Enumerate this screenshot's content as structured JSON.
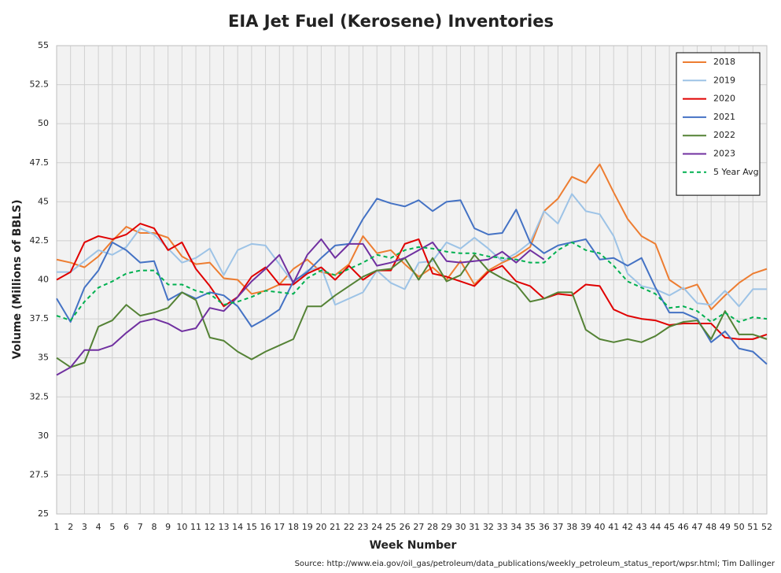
{
  "chart_data": {
    "type": "line",
    "title": "EIA Jet Fuel (Kerosene) Inventories",
    "x_label": "Week Number",
    "y_label": "Volume (Millions of BBLS)",
    "source": "Source: http://www.eia.gov/oil_gas/petroleum/data_publications/weekly_petroleum_status_report/wpsr.html; Tim Dallinger",
    "x": [
      1,
      2,
      3,
      4,
      5,
      6,
      7,
      8,
      9,
      10,
      11,
      12,
      13,
      14,
      15,
      16,
      17,
      18,
      19,
      20,
      21,
      22,
      23,
      24,
      25,
      26,
      27,
      28,
      29,
      30,
      31,
      32,
      33,
      34,
      35,
      36,
      37,
      38,
      39,
      40,
      41,
      42,
      43,
      44,
      45,
      46,
      47,
      48,
      49,
      50,
      51,
      52
    ],
    "xlim": [
      1,
      52
    ],
    "xticks": [
      1,
      2,
      3,
      4,
      5,
      6,
      7,
      8,
      9,
      10,
      11,
      12,
      13,
      14,
      15,
      16,
      17,
      18,
      19,
      20,
      21,
      22,
      23,
      24,
      25,
      26,
      27,
      28,
      29,
      30,
      31,
      32,
      33,
      34,
      35,
      36,
      37,
      38,
      39,
      40,
      41,
      42,
      43,
      44,
      45,
      46,
      47,
      48,
      49,
      50,
      51,
      52
    ],
    "ylim": [
      25,
      55
    ],
    "yticks": [
      25,
      27.5,
      30,
      32.5,
      35,
      37.5,
      40,
      42.5,
      45,
      47.5,
      50,
      52.5,
      55
    ],
    "grid": true,
    "legend_position": "upper right",
    "series": [
      {
        "name": "2018",
        "color": "#ed7d31",
        "style": "solid",
        "values": [
          41.3,
          41.1,
          40.8,
          41.5,
          42.5,
          43.4,
          43.0,
          43.0,
          42.7,
          41.5,
          41.0,
          41.1,
          40.1,
          40.0,
          39.1,
          39.3,
          39.7,
          40.7,
          41.3,
          40.5,
          40.3,
          41.0,
          42.8,
          41.7,
          41.9,
          41.0,
          40.2,
          40.8,
          40.0,
          41.2,
          39.7,
          40.6,
          41.1,
          41.5,
          42.1,
          44.4,
          45.2,
          46.6,
          46.2,
          47.4,
          45.6,
          43.9,
          42.8,
          42.3,
          40.0,
          39.4,
          39.7,
          38.1,
          39.0,
          39.8,
          40.4,
          40.7
        ]
      },
      {
        "name": "2019",
        "color": "#9dc3e6",
        "style": "solid",
        "values": [
          40.5,
          40.5,
          41.2,
          41.9,
          41.6,
          42.1,
          43.3,
          42.9,
          42.0,
          41.1,
          41.4,
          42.0,
          40.3,
          41.9,
          42.3,
          42.2,
          41.0,
          39.8,
          40.6,
          40.8,
          38.4,
          38.8,
          39.2,
          40.6,
          39.8,
          39.4,
          41.1,
          41.2,
          42.4,
          42.0,
          42.7,
          42.0,
          41.2,
          41.7,
          42.4,
          44.4,
          43.6,
          45.5,
          44.4,
          44.2,
          42.8,
          40.4,
          39.6,
          39.4,
          39.0,
          39.5,
          38.5,
          38.4,
          39.3,
          38.3,
          39.4,
          39.4
        ]
      },
      {
        "name": "2020",
        "color": "#e00000",
        "style": "solid",
        "values": [
          40.0,
          40.5,
          42.4,
          42.8,
          42.6,
          42.9,
          43.6,
          43.3,
          41.9,
          42.4,
          40.7,
          39.6,
          38.3,
          38.9,
          40.2,
          40.8,
          39.7,
          39.7,
          40.4,
          40.8,
          40.0,
          40.9,
          40.0,
          40.6,
          40.6,
          42.3,
          42.6,
          40.4,
          40.2,
          39.9,
          39.6,
          40.5,
          40.9,
          39.9,
          39.6,
          38.8,
          39.1,
          39.0,
          39.7,
          39.6,
          38.1,
          37.7,
          37.5,
          37.4,
          37.1,
          37.2,
          37.2,
          37.2,
          36.3,
          36.2,
          36.2,
          36.5
        ]
      },
      {
        "name": "2021",
        "color": "#4472c4",
        "style": "solid",
        "values": [
          38.8,
          37.3,
          39.5,
          40.6,
          42.4,
          41.9,
          41.1,
          41.2,
          38.7,
          39.2,
          38.8,
          39.2,
          39.0,
          38.3,
          37.0,
          37.5,
          38.1,
          39.9,
          40.5,
          41.4,
          42.2,
          42.3,
          43.9,
          45.2,
          44.9,
          44.7,
          45.1,
          44.4,
          45.0,
          45.1,
          43.3,
          42.9,
          43.0,
          44.5,
          42.4,
          41.7,
          42.2,
          42.4,
          42.6,
          41.3,
          41.4,
          40.9,
          41.4,
          39.5,
          37.9,
          37.9,
          37.5,
          36.0,
          36.7,
          35.6,
          35.4,
          34.6
        ]
      },
      {
        "name": "2022",
        "color": "#548235",
        "style": "solid",
        "values": [
          35.0,
          34.4,
          34.7,
          37.0,
          37.4,
          38.4,
          37.7,
          37.9,
          38.2,
          39.2,
          38.7,
          36.3,
          36.1,
          35.4,
          34.9,
          35.4,
          35.8,
          36.2,
          38.3,
          38.3,
          39.0,
          39.6,
          40.2,
          40.6,
          40.7,
          41.4,
          40.0,
          41.4,
          39.9,
          40.3,
          41.6,
          40.6,
          40.1,
          39.7,
          38.6,
          38.8,
          39.2,
          39.2,
          36.8,
          36.2,
          36.0,
          36.2,
          36.0,
          36.4,
          37.0,
          37.3,
          37.4,
          36.2,
          38.0,
          36.5,
          36.5,
          36.2
        ]
      },
      {
        "name": "2023",
        "color": "#7030a0",
        "style": "solid",
        "values": [
          33.9,
          34.4,
          35.5,
          35.5,
          35.8,
          36.6,
          37.3,
          37.5,
          37.2,
          36.7,
          36.9,
          38.2,
          38.0,
          38.9,
          39.9,
          40.7,
          41.6,
          39.8,
          41.6,
          42.6,
          41.4,
          42.3,
          42.3,
          40.9,
          41.1,
          41.4,
          41.9,
          42.4,
          41.2,
          41.1,
          41.2,
          41.3,
          41.8,
          41.1,
          41.9,
          41.3,
          null,
          null,
          null,
          null,
          null,
          null,
          null,
          null,
          null,
          null,
          null,
          null,
          null,
          null,
          null,
          null
        ]
      },
      {
        "name": "5 Year Avg",
        "color": "#00b050",
        "style": "dashed",
        "values": [
          37.7,
          37.4,
          38.6,
          39.5,
          39.9,
          40.4,
          40.6,
          40.6,
          39.7,
          39.7,
          39.3,
          39.1,
          38.4,
          38.6,
          38.9,
          39.3,
          39.2,
          39.1,
          40.1,
          40.6,
          40.3,
          40.7,
          41.1,
          41.6,
          41.4,
          41.9,
          42.1,
          42.0,
          41.8,
          41.7,
          41.7,
          41.5,
          41.4,
          41.3,
          41.1,
          41.1,
          41.9,
          42.4,
          41.9,
          41.7,
          40.9,
          39.9,
          39.5,
          39.1,
          38.2,
          38.3,
          38.0,
          37.3,
          37.9,
          37.3,
          37.6,
          37.5
        ]
      }
    ]
  }
}
